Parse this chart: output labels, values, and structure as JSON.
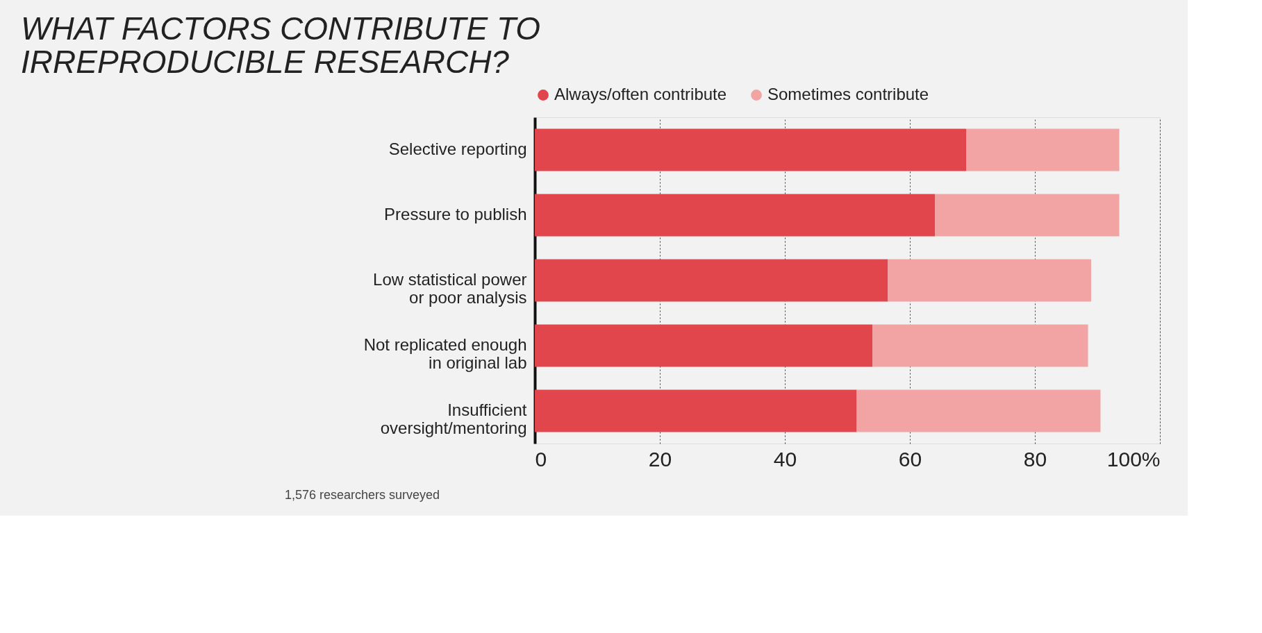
{
  "chart_data": {
    "type": "bar",
    "orientation": "horizontal",
    "stacked": true,
    "title": "WHAT FACTORS CONTRIBUTE TO\nIRREPRODUCIBLE RESEARCH?",
    "categories": [
      "Selective reporting",
      "Pressure to publish",
      "Low statistical power\nor poor analysis",
      "Not replicated enough\nin original lab",
      "Insufficient\noversight/mentoring"
    ],
    "series": [
      {
        "name": "Always/often contribute",
        "color": "#e0464c",
        "values": [
          69,
          64,
          56.5,
          54,
          51.5
        ]
      },
      {
        "name": "Sometimes contribute",
        "color": "#f2a3a3",
        "values": [
          24.5,
          29.5,
          32.5,
          34.5,
          39
        ]
      }
    ],
    "xlim": [
      0,
      100
    ],
    "xticks": [
      0,
      20,
      40,
      60,
      80,
      {
        "value": 100,
        "label": "100%"
      }
    ],
    "grid": "x",
    "legend": "top left",
    "annotations": [
      "1,576 researchers surveyed"
    ]
  }
}
